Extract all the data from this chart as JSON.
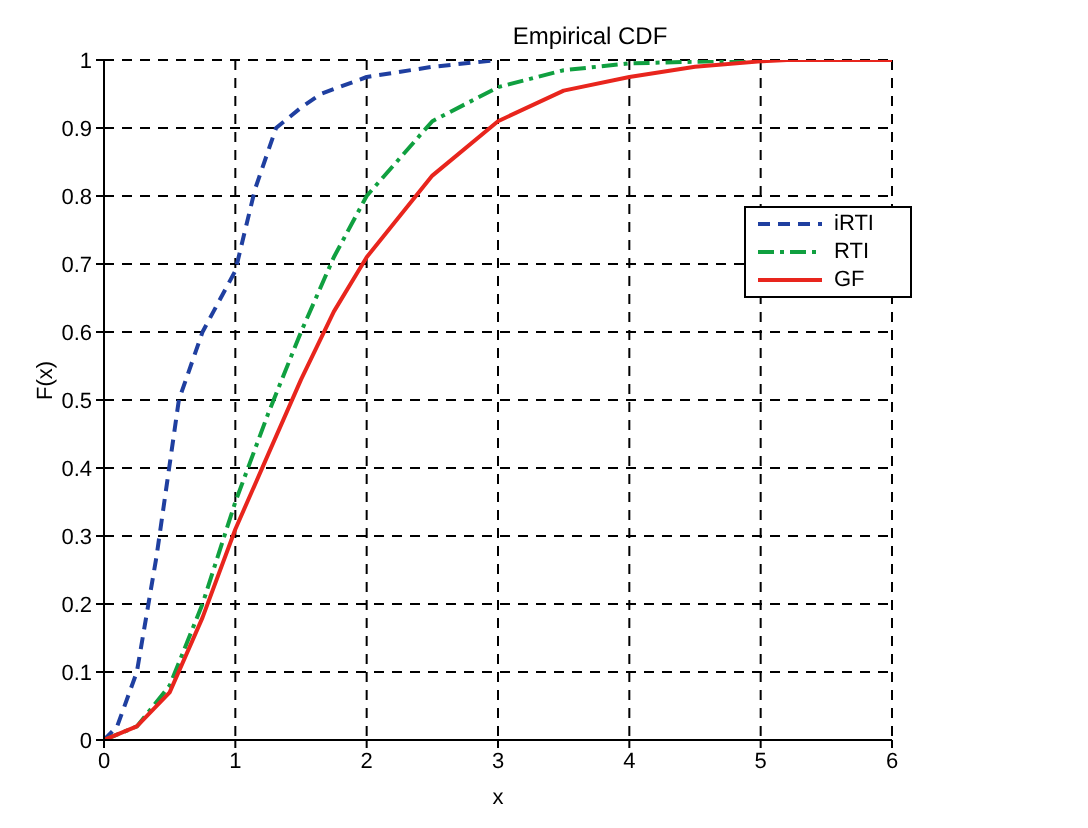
{
  "chart_data": {
    "type": "line",
    "title": "Empirical CDF",
    "xlabel": "x",
    "ylabel": "F(x)",
    "xlim": [
      0,
      6
    ],
    "xticks": [
      0,
      1,
      2,
      3,
      4,
      5,
      6
    ],
    "ylim": [
      0,
      1
    ],
    "yticks": [
      0,
      0.1,
      0.2,
      0.3,
      0.4,
      0.5,
      0.6,
      0.7,
      0.8,
      0.9,
      1
    ],
    "grid": true,
    "legend": "right",
    "marker": "none",
    "series": [
      {
        "name": "iRTI",
        "color": "#1f3fa0",
        "line_style": "dashed",
        "x": [
          0,
          0.1,
          0.25,
          0.4,
          0.57,
          0.75,
          1,
          1.15,
          1.31,
          1.5,
          1.65,
          2,
          2.5,
          3
        ],
        "values": [
          0,
          0.02,
          0.1,
          0.27,
          0.5,
          0.6,
          0.69,
          0.81,
          0.9,
          0.93,
          0.95,
          0.975,
          0.99,
          1
        ]
      },
      {
        "name": "RTI",
        "color": "#10a040",
        "line_style": "dashdot",
        "x": [
          0,
          0.25,
          0.5,
          0.75,
          1,
          1.25,
          1.5,
          1.75,
          2,
          2.5,
          3,
          3.5,
          4,
          5
        ],
        "values": [
          0,
          0.02,
          0.08,
          0.2,
          0.35,
          0.48,
          0.6,
          0.71,
          0.8,
          0.91,
          0.96,
          0.985,
          0.995,
          1
        ]
      },
      {
        "name": "GF",
        "color": "#e8251d",
        "line_style": "solid",
        "x": [
          0,
          0.25,
          0.5,
          0.75,
          1,
          1.25,
          1.5,
          1.75,
          2,
          2.5,
          3,
          3.5,
          4,
          4.5,
          5,
          5.2,
          6
        ],
        "values": [
          0,
          0.02,
          0.07,
          0.18,
          0.31,
          0.42,
          0.53,
          0.63,
          0.71,
          0.83,
          0.91,
          0.955,
          0.975,
          0.99,
          0.998,
          1,
          1
        ]
      }
    ]
  }
}
